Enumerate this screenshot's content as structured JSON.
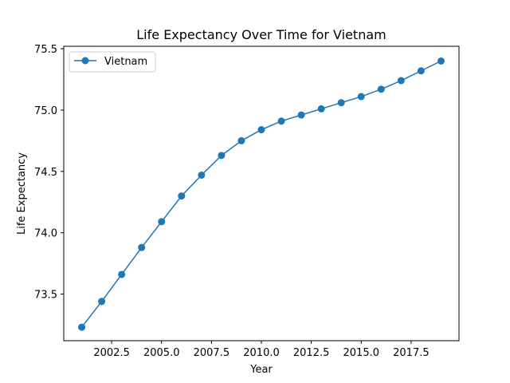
{
  "chart_data": {
    "type": "line",
    "title": "Life Expectancy Over Time for Vietnam",
    "xlabel": "Year",
    "ylabel": "Life Expectancy",
    "xlim": [
      2000.1,
      2019.9
    ],
    "ylim": [
      73.12,
      75.52
    ],
    "xticks": [
      2002.5,
      2005.0,
      2007.5,
      2010.0,
      2012.5,
      2015.0,
      2017.5
    ],
    "xtick_labels": [
      "2002.5",
      "2005.0",
      "2007.5",
      "2010.0",
      "2012.5",
      "2015.0",
      "2017.5"
    ],
    "yticks": [
      73.5,
      74.0,
      74.5,
      75.0,
      75.5
    ],
    "ytick_labels": [
      "73.5",
      "74.0",
      "74.5",
      "75.0",
      "75.5"
    ],
    "grid": false,
    "legend": {
      "position": "top-left"
    },
    "series": [
      {
        "name": "Vietnam",
        "color": "#1f77b4",
        "marker": "circle",
        "x": [
          2001,
          2002,
          2003,
          2004,
          2005,
          2006,
          2007,
          2008,
          2009,
          2010,
          2011,
          2012,
          2013,
          2014,
          2015,
          2016,
          2017,
          2018,
          2019
        ],
        "y": [
          73.23,
          73.44,
          73.66,
          73.88,
          74.09,
          74.3,
          74.47,
          74.63,
          74.75,
          74.84,
          74.91,
          74.96,
          75.01,
          75.06,
          75.11,
          75.17,
          75.24,
          75.32,
          75.4
        ]
      }
    ]
  }
}
